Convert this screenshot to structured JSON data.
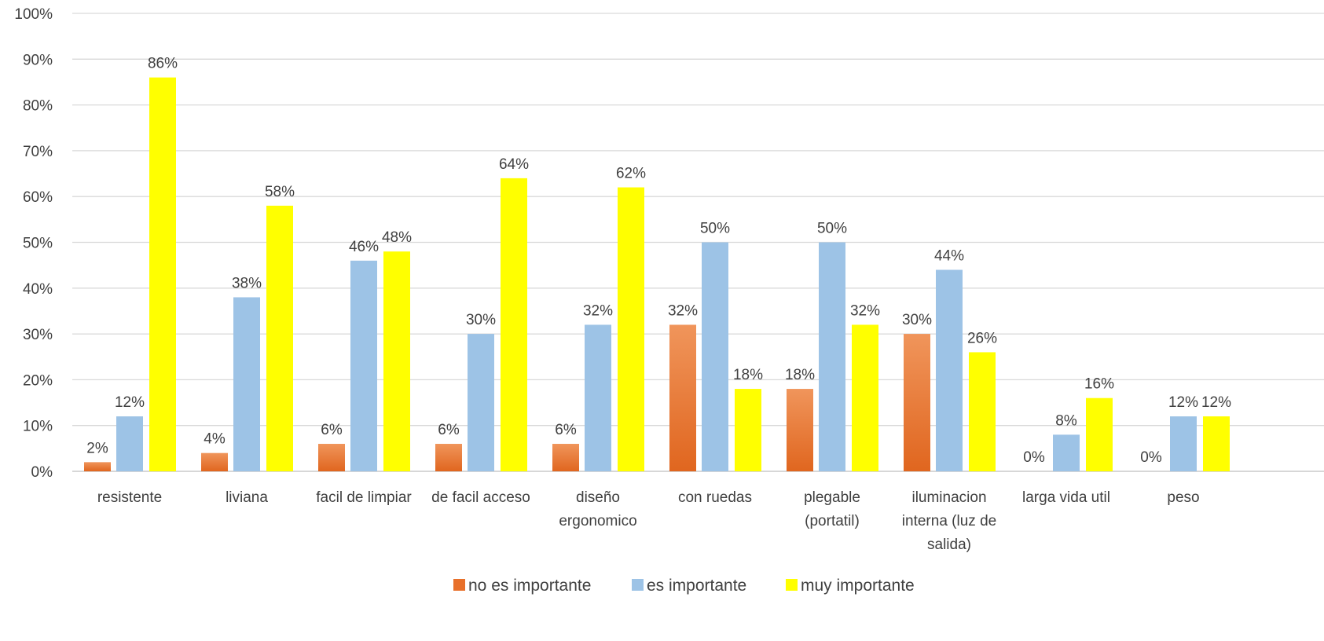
{
  "chart_data": {
    "type": "bar",
    "title": "",
    "xlabel": "",
    "ylabel": "",
    "ylim": [
      0,
      100
    ],
    "y_ticks": [
      "0%",
      "10%",
      "20%",
      "30%",
      "40%",
      "50%",
      "60%",
      "70%",
      "80%",
      "90%",
      "100%"
    ],
    "grid": true,
    "legend_position": "bottom",
    "categories": [
      [
        "resistente"
      ],
      [
        "liviana"
      ],
      [
        "facil de limpiar"
      ],
      [
        "de facil acceso"
      ],
      [
        "diseño",
        "ergonomico"
      ],
      [
        "con ruedas"
      ],
      [
        "plegable",
        "(portatil)"
      ],
      [
        "iluminacion",
        "interna (luz de",
        "salida)"
      ],
      [
        "larga vida util"
      ],
      [
        "peso"
      ]
    ],
    "series": [
      {
        "name": "no es importante",
        "color": "#E8702A",
        "values": [
          2,
          4,
          6,
          6,
          6,
          32,
          18,
          30,
          0,
          0
        ]
      },
      {
        "name": "es importante",
        "color": "#9DC3E6",
        "values": [
          12,
          38,
          46,
          30,
          32,
          50,
          50,
          44,
          8,
          12
        ]
      },
      {
        "name": "muy importante",
        "color": "#FFFF00",
        "values": [
          86,
          58,
          48,
          64,
          62,
          18,
          32,
          26,
          16,
          12
        ]
      }
    ],
    "value_suffix": "%"
  }
}
